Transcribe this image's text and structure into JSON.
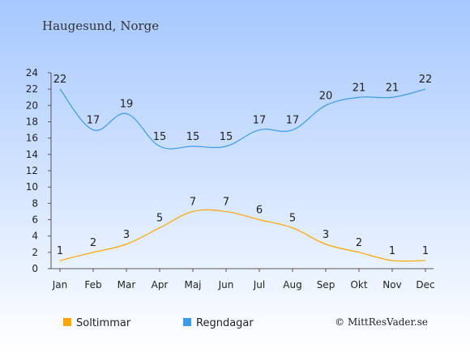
{
  "chart_data": {
    "type": "line",
    "title": "Haugesund, Norge",
    "categories": [
      "Jan",
      "Feb",
      "Mar",
      "Apr",
      "Maj",
      "Jun",
      "Jul",
      "Aug",
      "Sep",
      "Okt",
      "Nov",
      "Dec"
    ],
    "series": [
      {
        "name": "Soltimmar",
        "values": [
          1,
          2,
          3,
          5,
          7,
          7,
          6,
          5,
          3,
          2,
          1,
          1
        ],
        "color": "#FFA500"
      },
      {
        "name": "Regndagar",
        "values": [
          22,
          17,
          19,
          15,
          15,
          15,
          17,
          17,
          20,
          21,
          21,
          22
        ],
        "color": "#3A9BE8"
      }
    ],
    "ylim": [
      0,
      24
    ],
    "yticks": [
      "0",
      "2",
      "4",
      "6",
      "8",
      "10",
      "12",
      "14",
      "16",
      "18",
      "20",
      "22",
      "24"
    ],
    "grid": false,
    "legend_position": "bottom-left",
    "background_gradient": [
      "#A6C8FF",
      "#FFFFFF"
    ]
  },
  "copyright": "© MittResVader.se"
}
